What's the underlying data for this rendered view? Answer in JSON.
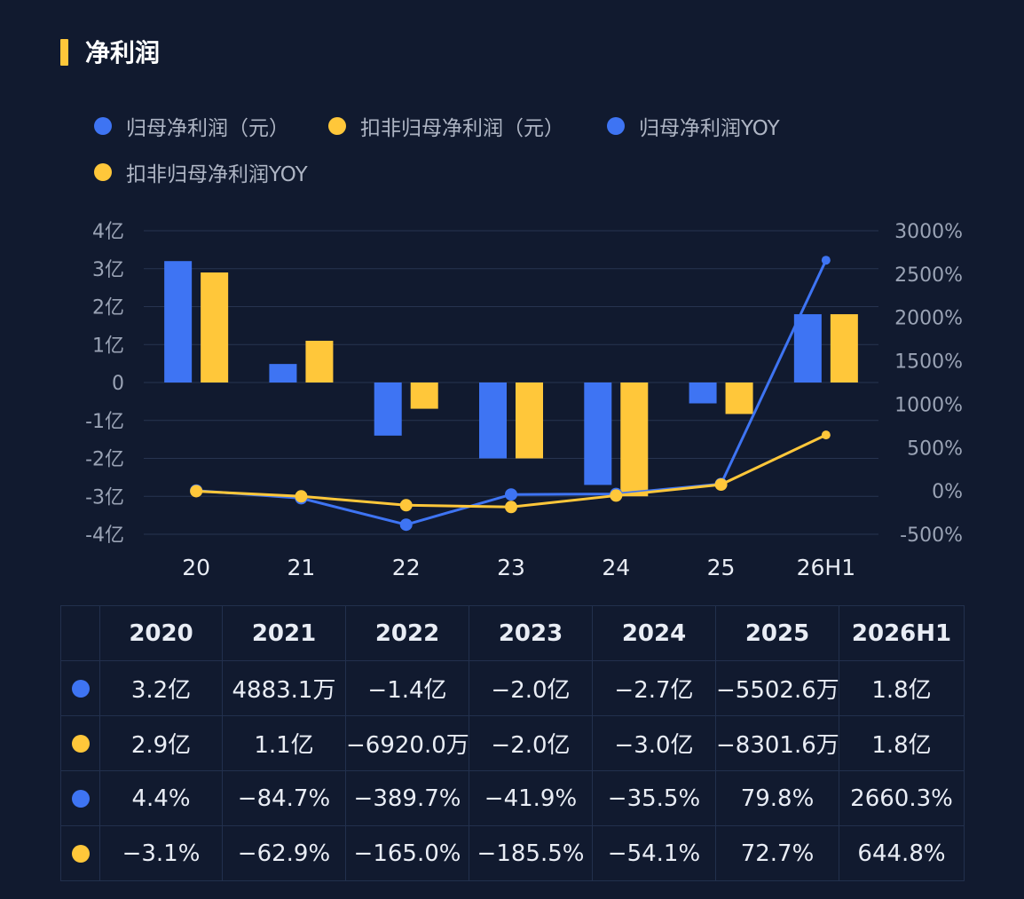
{
  "title": "净利润",
  "colors": {
    "blue": "#3e74f3",
    "yellow": "#ffc73a",
    "grid": "#273450",
    "axis_text": "#9aa3b5"
  },
  "legend": [
    {
      "label": "归母净利润（元）",
      "color": "#3e74f3"
    },
    {
      "label": "扣非归母净利润（元）",
      "color": "#ffc73a"
    },
    {
      "label": "归母净利润YOY",
      "color": "#3e74f3"
    },
    {
      "label": "扣非归母净利润YOY",
      "color": "#ffc73a"
    }
  ],
  "chart_data": {
    "type": "bar",
    "categories": [
      "20",
      "21",
      "22",
      "23",
      "24",
      "25",
      "26H1"
    ],
    "left_axis": {
      "ticks": [
        "4亿",
        "3亿",
        "2亿",
        "1亿",
        "0",
        "-1亿",
        "-2亿",
        "-3亿",
        "-4亿"
      ],
      "ylim": [
        -4,
        4
      ],
      "unit": "亿"
    },
    "right_axis": {
      "ticks": [
        "3000%",
        "2500%",
        "2000%",
        "1500%",
        "1000%",
        "500%",
        "0%",
        "-500%"
      ],
      "ylim": [
        -500,
        3000
      ],
      "unit": "%"
    },
    "series": [
      {
        "name": "归母净利润（元）",
        "kind": "bar",
        "axis": "left",
        "color": "#3e74f3",
        "values": [
          3.2,
          0.4883,
          -1.4,
          -2.0,
          -2.7,
          -0.5503,
          1.8
        ]
      },
      {
        "name": "扣非归母净利润（元）",
        "kind": "bar",
        "axis": "left",
        "color": "#ffc73a",
        "values": [
          2.9,
          1.1,
          -0.692,
          -2.0,
          -3.0,
          -0.8302,
          1.8
        ]
      },
      {
        "name": "归母净利润YOY",
        "kind": "line",
        "axis": "right",
        "color": "#3e74f3",
        "values": [
          4.4,
          -84.7,
          -389.7,
          -41.9,
          -35.5,
          79.8,
          2660.3
        ]
      },
      {
        "name": "扣非归母净利润YOY",
        "kind": "line",
        "axis": "right",
        "color": "#ffc73a",
        "values": [
          -3.1,
          -62.9,
          -165.0,
          -185.5,
          -54.1,
          72.7,
          644.8
        ]
      }
    ],
    "grid": true,
    "legend_position": "top-left"
  },
  "table": {
    "headers": [
      "",
      "2020",
      "2021",
      "2022",
      "2023",
      "2024",
      "2025",
      "2026H1"
    ],
    "rows": [
      {
        "color": "#3e74f3",
        "cells": [
          "3.2亿",
          "4883.1万",
          "−1.4亿",
          "−2.0亿",
          "−2.7亿",
          "−5502.6万",
          "1.8亿"
        ]
      },
      {
        "color": "#ffc73a",
        "cells": [
          "2.9亿",
          "1.1亿",
          "−6920.0万",
          "−2.0亿",
          "−3.0亿",
          "−8301.6万",
          "1.8亿"
        ]
      },
      {
        "color": "#3e74f3",
        "cells": [
          "4.4%",
          "−84.7%",
          "−389.7%",
          "−41.9%",
          "−35.5%",
          "79.8%",
          "2660.3%"
        ]
      },
      {
        "color": "#ffc73a",
        "cells": [
          "−3.1%",
          "−62.9%",
          "−165.0%",
          "−185.5%",
          "−54.1%",
          "72.7%",
          "644.8%"
        ]
      }
    ]
  }
}
